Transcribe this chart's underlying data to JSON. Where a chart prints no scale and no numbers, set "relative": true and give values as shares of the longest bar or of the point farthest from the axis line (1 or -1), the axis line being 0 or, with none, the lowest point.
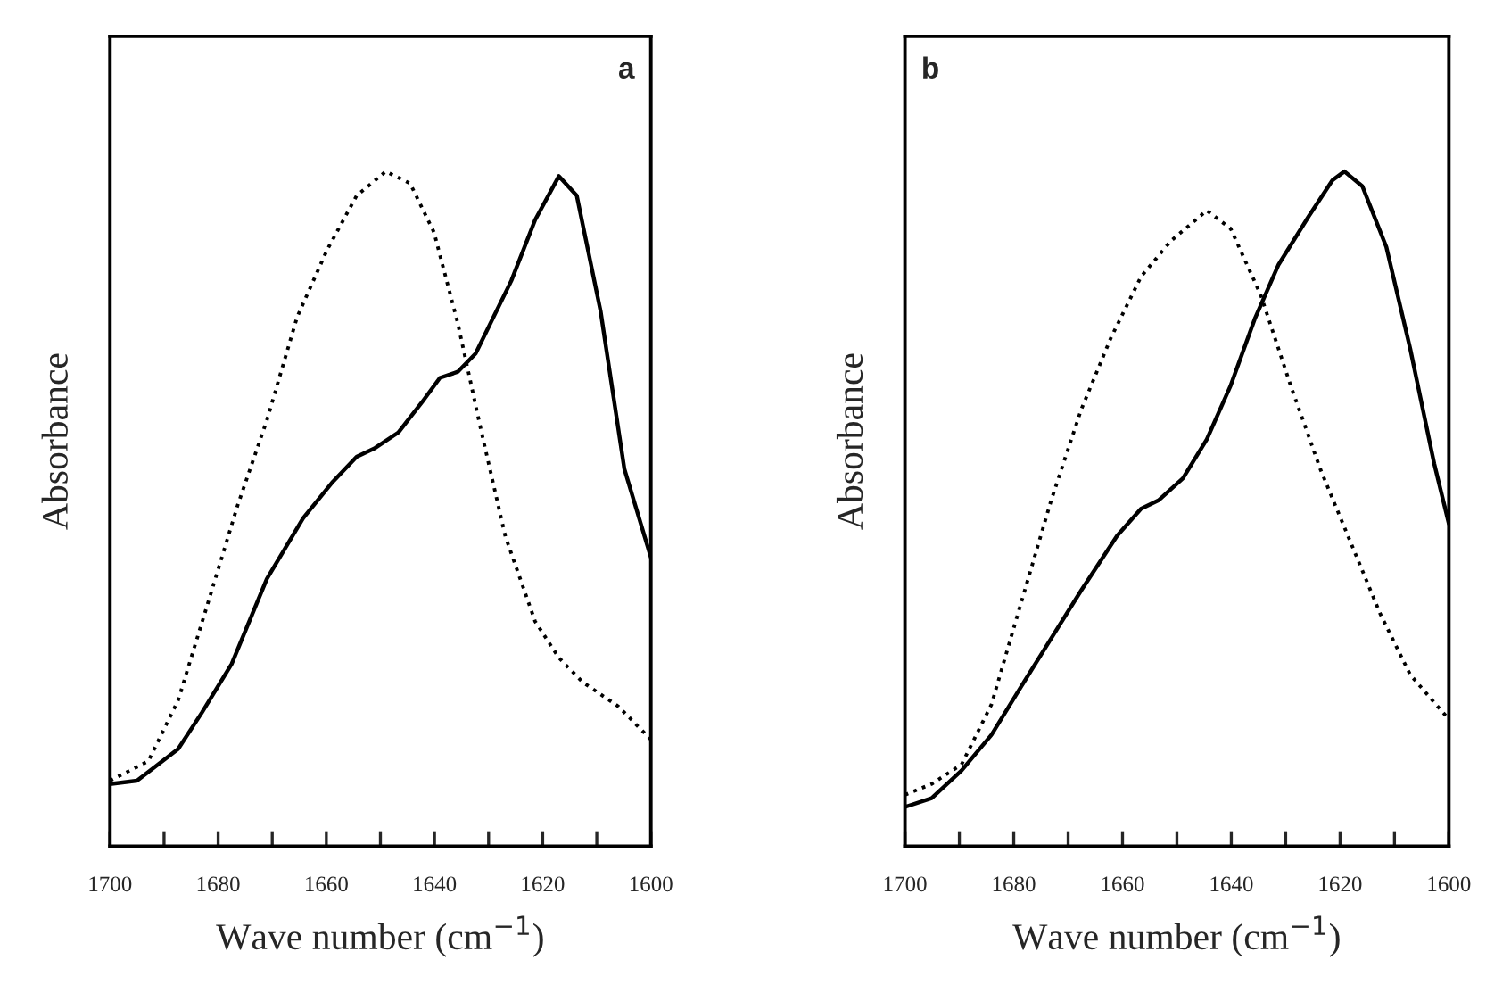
{
  "chart_data": [
    {
      "type": "line",
      "relative": true,
      "xlabel": "Wave number (cm$^{−1}$)",
      "ylabel": "Absorbance",
      "annotations": [
        "a"
      ],
      "xlim": [
        1700,
        1600
      ],
      "xticks": [
        1700,
        {
          "value": 1690,
          "label": null
        },
        1680,
        {
          "value": 1670,
          "label": null
        },
        1660,
        {
          "value": 1650,
          "label": null
        },
        1640,
        {
          "value": 1630,
          "label": null
        },
        1620,
        {
          "value": 1610,
          "label": null
        },
        1600
      ],
      "grid": false,
      "legend": false,
      "series": [
        {
          "color": "#000000",
          "line_style": "solid",
          "x": [
            1700,
            1695,
            1687.4,
            1683,
            1677.5,
            1671,
            1664.3,
            1658.8,
            1654.4,
            1651,
            1646.7,
            1642.3,
            1639,
            1635.7,
            1632.4,
            1625.8,
            1621.4,
            1617,
            1613.7,
            1609.3,
            1604.9,
            1600
          ],
          "values": [
            0.092,
            0.097,
            0.144,
            0.198,
            0.27,
            0.396,
            0.486,
            0.54,
            0.577,
            0.59,
            0.613,
            0.658,
            0.694,
            0.703,
            0.73,
            0.838,
            0.928,
            0.993,
            0.964,
            0.793,
            0.559,
            0.428
          ]
        },
        {
          "color": "#000000",
          "line_style": "dotted",
          "x": [
            1700,
            1692.9,
            1687.4,
            1681.9,
            1676.4,
            1671,
            1665.4,
            1659.9,
            1654.4,
            1649,
            1644.5,
            1640.1,
            1635.7,
            1631.3,
            1626.9,
            1621.4,
            1617,
            1612.6,
            1606,
            1600
          ],
          "values": [
            0.097,
            0.126,
            0.216,
            0.36,
            0.505,
            0.631,
            0.784,
            0.883,
            0.964,
            1.0,
            0.982,
            0.91,
            0.775,
            0.613,
            0.459,
            0.333,
            0.279,
            0.243,
            0.207,
            0.158
          ]
        }
      ]
    },
    {
      "type": "line",
      "relative": true,
      "xlabel": "Wave number (cm$^{−1}$)",
      "ylabel": "Absorbance",
      "annotations": [
        "b"
      ],
      "xlim": [
        1700,
        1600
      ],
      "xticks": [
        1700,
        {
          "value": 1690,
          "label": null
        },
        1680,
        {
          "value": 1670,
          "label": null
        },
        1660,
        {
          "value": 1650,
          "label": null
        },
        1640,
        {
          "value": 1630,
          "label": null
        },
        1620,
        {
          "value": 1610,
          "label": null
        },
        1600
      ],
      "grid": false,
      "legend": false,
      "series": [
        {
          "color": "#000000",
          "line_style": "solid",
          "x": [
            1700,
            1695.1,
            1689.6,
            1684.1,
            1678.6,
            1673.1,
            1667.6,
            1661,
            1656.6,
            1653.3,
            1648.9,
            1644.5,
            1640.1,
            1635.7,
            1631.3,
            1625.8,
            1621.4,
            1619.2,
            1615.9,
            1611.5,
            1607.1,
            1602.7,
            1600
          ],
          "values": [
            0.058,
            0.071,
            0.112,
            0.165,
            0.237,
            0.308,
            0.379,
            0.46,
            0.5,
            0.513,
            0.545,
            0.603,
            0.683,
            0.781,
            0.862,
            0.933,
            0.987,
            1.0,
            0.978,
            0.888,
            0.737,
            0.567,
            0.478
          ]
        },
        {
          "color": "#000000",
          "line_style": "dotted",
          "x": [
            1700,
            1695.1,
            1689.6,
            1684.1,
            1678.6,
            1673.1,
            1667.6,
            1662.1,
            1656.6,
            1651.1,
            1644.5,
            1640.1,
            1634.6,
            1629.1,
            1623.6,
            1618.1,
            1612.6,
            1607.1,
            1600
          ],
          "values": [
            0.076,
            0.092,
            0.121,
            0.21,
            0.362,
            0.513,
            0.647,
            0.754,
            0.844,
            0.897,
            0.942,
            0.915,
            0.817,
            0.683,
            0.558,
            0.451,
            0.344,
            0.254,
            0.188
          ]
        }
      ]
    }
  ]
}
